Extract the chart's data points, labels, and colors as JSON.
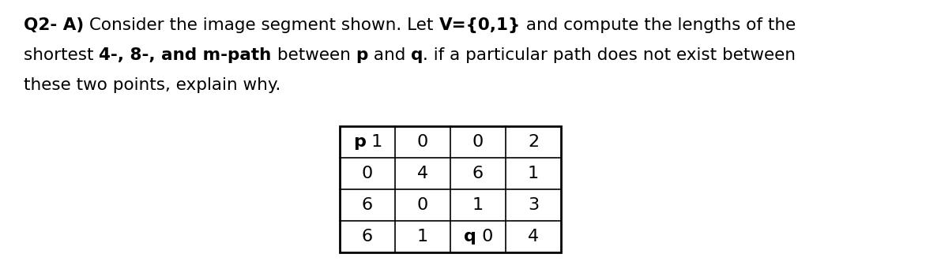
{
  "line1_segments": [
    [
      "Q2- A)",
      "bold"
    ],
    [
      " Consider the image segment shown. Let ",
      "normal"
    ],
    [
      "V={0,1}",
      "bold"
    ],
    [
      " and compute the lengths of the",
      "normal"
    ]
  ],
  "line2_segments": [
    [
      "shortest ",
      "normal"
    ],
    [
      "4-, 8-, and m-path",
      "bold"
    ],
    [
      " between ",
      "normal"
    ],
    [
      "p",
      "bold"
    ],
    [
      " and ",
      "normal"
    ],
    [
      "q",
      "bold"
    ],
    [
      ". if a particular path does not exist between",
      "normal"
    ]
  ],
  "line3": "these two points, explain why.",
  "grid": [
    [
      "p",
      "1",
      "0",
      "0",
      "2"
    ],
    [
      "",
      "0",
      "4",
      "6",
      "1"
    ],
    [
      "",
      "6",
      "0",
      "1",
      "3"
    ],
    [
      "q",
      "6",
      "1",
      "0",
      "4"
    ]
  ],
  "bg_color": "#ffffff",
  "text_color": "#000000",
  "font_size_text": 15.5,
  "font_size_grid": 16
}
